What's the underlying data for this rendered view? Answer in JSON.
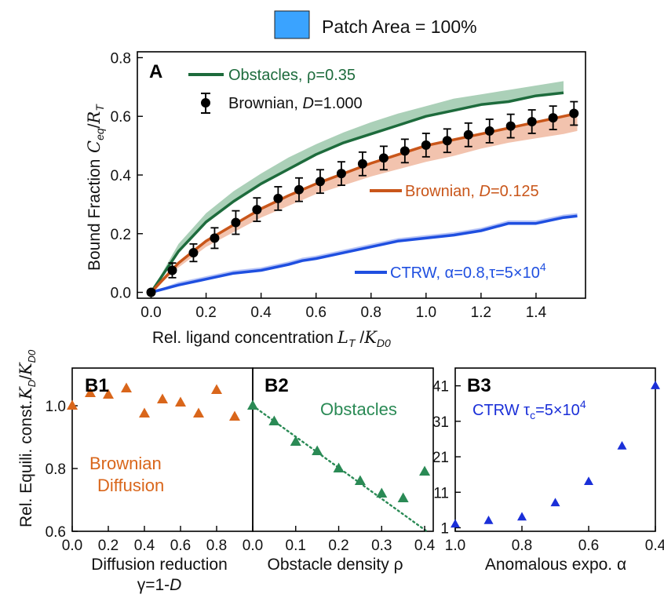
{
  "legend_top": {
    "label": "Patch Area = 100%",
    "color": "#3aa3ff"
  },
  "colors": {
    "obstacles": "#1d6b3c",
    "obstacles_band": "#9cc8ac",
    "brownian_slow": "#c9561a",
    "brownian_band": "#f0b9a0",
    "ctrw": "#1f4fe0",
    "ctrw_band": "#a9b8f5",
    "brownian": "#000000",
    "b1": "#d9661b",
    "b2": "#2a8a55",
    "b3": "#1a2fd8"
  },
  "chart_data": [
    {
      "type": "line",
      "panel_label": "A",
      "xlabel": "Rel. ligand concentration",
      "xlabel_math": "L_T / K_D0",
      "ylabel": "Bound Fraction",
      "ylabel_math": "C_eq / R_T",
      "xlim": [
        -0.05,
        1.58
      ],
      "ylim": [
        -0.02,
        0.82
      ],
      "xticks": [
        "0.0",
        "0.2",
        "0.4",
        "0.6",
        "0.8",
        "1.0",
        "1.2",
        "1.4"
      ],
      "yticks": [
        "0.0",
        "0.2",
        "0.4",
        "0.6",
        "0.8"
      ],
      "legend": {
        "obstacles": "Obstacles, ρ=0.35",
        "brownian_fast_prefix": "Brownian, ",
        "brownian_fast_D": "D",
        "brownian_fast_val": "=1.000",
        "brownian_slow_prefix": "Brownian, ",
        "brownian_slow_D": "D",
        "brownian_slow_val": "=0.125",
        "ctrw": "CTRW, α=0.8,τ=5×10",
        "ctrw_exp": "4"
      },
      "series": [
        {
          "name": "Obstacles, ρ=0.35",
          "x": [
            0.0,
            0.1,
            0.2,
            0.3,
            0.4,
            0.5,
            0.6,
            0.7,
            0.8,
            0.9,
            1.0,
            1.1,
            1.2,
            1.3,
            1.4,
            1.5
          ],
          "y": [
            0.0,
            0.14,
            0.24,
            0.31,
            0.37,
            0.42,
            0.47,
            0.51,
            0.54,
            0.57,
            0.6,
            0.62,
            0.64,
            0.65,
            0.67,
            0.68
          ],
          "band_upper": [
            0.0,
            0.165,
            0.27,
            0.345,
            0.405,
            0.46,
            0.505,
            0.545,
            0.58,
            0.61,
            0.635,
            0.66,
            0.675,
            0.69,
            0.705,
            0.72
          ]
        },
        {
          "name": "Brownian, D=1.000",
          "x": [
            0.0,
            0.077,
            0.154,
            0.231,
            0.308,
            0.385,
            0.462,
            0.538,
            0.615,
            0.692,
            0.769,
            0.846,
            0.923,
            1.0,
            1.077,
            1.154,
            1.231,
            1.308,
            1.385,
            1.462,
            1.538
          ],
          "y": [
            0.0,
            0.075,
            0.135,
            0.185,
            0.238,
            0.282,
            0.32,
            0.35,
            0.378,
            0.405,
            0.438,
            0.458,
            0.482,
            0.502,
            0.517,
            0.537,
            0.55,
            0.567,
            0.582,
            0.595,
            0.61
          ],
          "err": [
            0.0,
            0.025,
            0.03,
            0.035,
            0.04,
            0.04,
            0.04,
            0.04,
            0.04,
            0.04,
            0.04,
            0.04,
            0.04,
            0.04,
            0.04,
            0.04,
            0.04,
            0.04,
            0.04,
            0.04,
            0.04
          ]
        },
        {
          "name": "Brownian, D=0.125",
          "x": [
            0.0,
            0.1,
            0.2,
            0.3,
            0.4,
            0.5,
            0.6,
            0.7,
            0.8,
            0.9,
            1.0,
            1.1,
            1.2,
            1.3,
            1.4,
            1.5,
            1.55
          ],
          "y": [
            0.0,
            0.1,
            0.175,
            0.23,
            0.285,
            0.33,
            0.37,
            0.405,
            0.44,
            0.47,
            0.5,
            0.52,
            0.54,
            0.56,
            0.58,
            0.6,
            0.61
          ],
          "band_lower": [
            0.0,
            0.085,
            0.155,
            0.205,
            0.255,
            0.295,
            0.335,
            0.365,
            0.395,
            0.42,
            0.445,
            0.465,
            0.49,
            0.51,
            0.525,
            0.54,
            0.55
          ]
        },
        {
          "name": "CTRW, α=0.8,τ=5×10^4",
          "x": [
            0.0,
            0.1,
            0.2,
            0.3,
            0.4,
            0.5,
            0.55,
            0.6,
            0.7,
            0.8,
            0.9,
            1.0,
            1.1,
            1.2,
            1.3,
            1.4,
            1.5,
            1.55
          ],
          "y": [
            0.0,
            0.025,
            0.045,
            0.065,
            0.075,
            0.095,
            0.108,
            0.115,
            0.135,
            0.155,
            0.175,
            0.185,
            0.195,
            0.21,
            0.235,
            0.235,
            0.255,
            0.26
          ],
          "band_upper": [
            0.0,
            0.035,
            0.055,
            0.075,
            0.085,
            0.105,
            0.118,
            0.125,
            0.145,
            0.165,
            0.185,
            0.195,
            0.205,
            0.22,
            0.245,
            0.245,
            0.265,
            0.27
          ]
        }
      ]
    },
    {
      "type": "scatter",
      "panel_label": "B1",
      "xlabel": "Diffusion reduction",
      "xlabel2": "γ=1-",
      "xlabel2_D": "D",
      "ylabel": "Rel. Equili. const.",
      "ylabel_math": "K_D / K_D0",
      "annotation_line1": "Brownian",
      "annotation_line2": "Diffusion",
      "xlim": [
        0.0,
        1.0
      ],
      "ylim": [
        0.6,
        1.12
      ],
      "xticks": [
        "0.0",
        "0.2",
        "0.4",
        "0.6",
        "0.8"
      ],
      "yticks": [
        "0.6",
        "0.8",
        "1.0"
      ],
      "x": [
        0.0,
        0.1,
        0.2,
        0.3,
        0.4,
        0.5,
        0.6,
        0.7,
        0.8,
        0.9
      ],
      "y": [
        1.0,
        1.04,
        1.035,
        1.055,
        0.975,
        1.02,
        1.01,
        0.975,
        1.05,
        0.965
      ]
    },
    {
      "type": "scatter",
      "panel_label": "B2",
      "xlabel": "Obstacle density ρ",
      "annotation": "Obstacles",
      "xlim": [
        0.0,
        0.42
      ],
      "ylim": [
        0.6,
        1.12
      ],
      "xticks": [
        "0.0",
        "0.1",
        "0.2",
        "0.3",
        "0.4"
      ],
      "x": [
        0.0,
        0.05,
        0.1,
        0.15,
        0.2,
        0.25,
        0.3,
        0.35,
        0.4
      ],
      "y": [
        1.0,
        0.95,
        0.885,
        0.855,
        0.8,
        0.76,
        0.72,
        0.705,
        0.79
      ],
      "fit_x": [
        0.0,
        0.405
      ],
      "fit_y": [
        1.0,
        0.6
      ]
    },
    {
      "type": "scatter",
      "panel_label": "B3",
      "xlabel": "Anomalous expo. α",
      "annotation": "CTRW τ",
      "annotation_sub": "c",
      "annotation_rest": "=5×10",
      "annotation_exp": "4",
      "xlim": [
        1.0,
        0.4
      ],
      "ylim": [
        0,
        46
      ],
      "xticks": [
        "1.0",
        "0.8",
        "0.6",
        "0.4"
      ],
      "yticks": [
        "1",
        "11",
        "21",
        "31",
        "41"
      ],
      "x": [
        1.0,
        0.9,
        0.8,
        0.7,
        0.6,
        0.5,
        0.4
      ],
      "y": [
        2.0,
        3.0,
        4.0,
        8.0,
        14.0,
        24.0,
        41.0
      ]
    }
  ]
}
